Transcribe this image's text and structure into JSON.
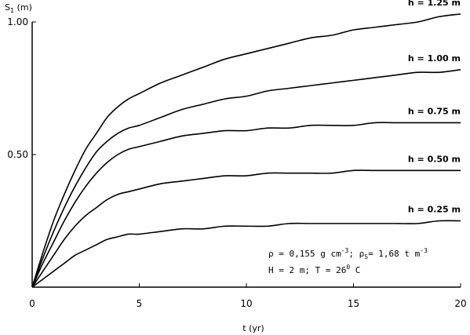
{
  "chart_data": {
    "type": "line",
    "xlabel": "t (yr)",
    "ylabel_main": "S",
    "ylabel_sub": "1",
    "ylabel_unit": " (m)",
    "xlim": [
      0,
      20
    ],
    "ylim": [
      0,
      1.0
    ],
    "x_ticks": [
      0,
      5,
      10,
      15,
      20
    ],
    "x_tick_labels": [
      "0",
      "5",
      "10",
      "15",
      "20"
    ],
    "y_ticks": [
      0.5,
      1.0
    ],
    "y_tick_labels": [
      "0.50",
      "1.00"
    ],
    "grid": false,
    "x": [
      0,
      0.5,
      1,
      1.5,
      2,
      2.5,
      3,
      3.5,
      4,
      4.5,
      5,
      6,
      7,
      8,
      9,
      10,
      11,
      12,
      13,
      14,
      15,
      16,
      17,
      18,
      19,
      20
    ],
    "series": [
      {
        "name": "h = 1.25 m",
        "values": [
          0,
          0.13,
          0.25,
          0.35,
          0.44,
          0.52,
          0.58,
          0.64,
          0.68,
          0.71,
          0.73,
          0.77,
          0.8,
          0.83,
          0.86,
          0.88,
          0.9,
          0.92,
          0.94,
          0.95,
          0.97,
          0.98,
          0.99,
          1.0,
          1.02,
          1.03
        ]
      },
      {
        "name": "h = 1.00 m",
        "values": [
          0,
          0.11,
          0.21,
          0.3,
          0.38,
          0.45,
          0.51,
          0.55,
          0.58,
          0.6,
          0.61,
          0.64,
          0.67,
          0.69,
          0.71,
          0.72,
          0.74,
          0.75,
          0.76,
          0.77,
          0.78,
          0.79,
          0.8,
          0.81,
          0.81,
          0.82
        ]
      },
      {
        "name": "h = 0.75 m",
        "values": [
          0,
          0.09,
          0.17,
          0.25,
          0.32,
          0.38,
          0.43,
          0.47,
          0.5,
          0.52,
          0.53,
          0.55,
          0.57,
          0.58,
          0.59,
          0.59,
          0.6,
          0.6,
          0.61,
          0.61,
          0.61,
          0.62,
          0.62,
          0.62,
          0.62,
          0.62
        ]
      },
      {
        "name": "h = 0.50 m",
        "values": [
          0,
          0.06,
          0.12,
          0.18,
          0.23,
          0.27,
          0.3,
          0.33,
          0.35,
          0.36,
          0.37,
          0.39,
          0.4,
          0.41,
          0.42,
          0.42,
          0.43,
          0.43,
          0.43,
          0.43,
          0.44,
          0.44,
          0.44,
          0.44,
          0.44,
          0.44
        ]
      },
      {
        "name": "h = 0.25 m",
        "values": [
          0,
          0.03,
          0.06,
          0.09,
          0.12,
          0.14,
          0.16,
          0.18,
          0.19,
          0.2,
          0.2,
          0.21,
          0.22,
          0.22,
          0.23,
          0.23,
          0.23,
          0.24,
          0.24,
          0.24,
          0.24,
          0.24,
          0.24,
          0.24,
          0.25,
          0.25
        ]
      }
    ],
    "annotation": {
      "line1_rho": "ρ = 0,155 g cm",
      "line1_rho_exp": "-3",
      "line1_rhos": "; ρ",
      "line1_rhos_sub": "S",
      "line1_rhos_val": "= 1,68  t m",
      "line1_rhos_exp": "-3",
      "line2": "H = 2 m; T = 26",
      "line2_deg": "0",
      "line2_unit": " C"
    }
  }
}
